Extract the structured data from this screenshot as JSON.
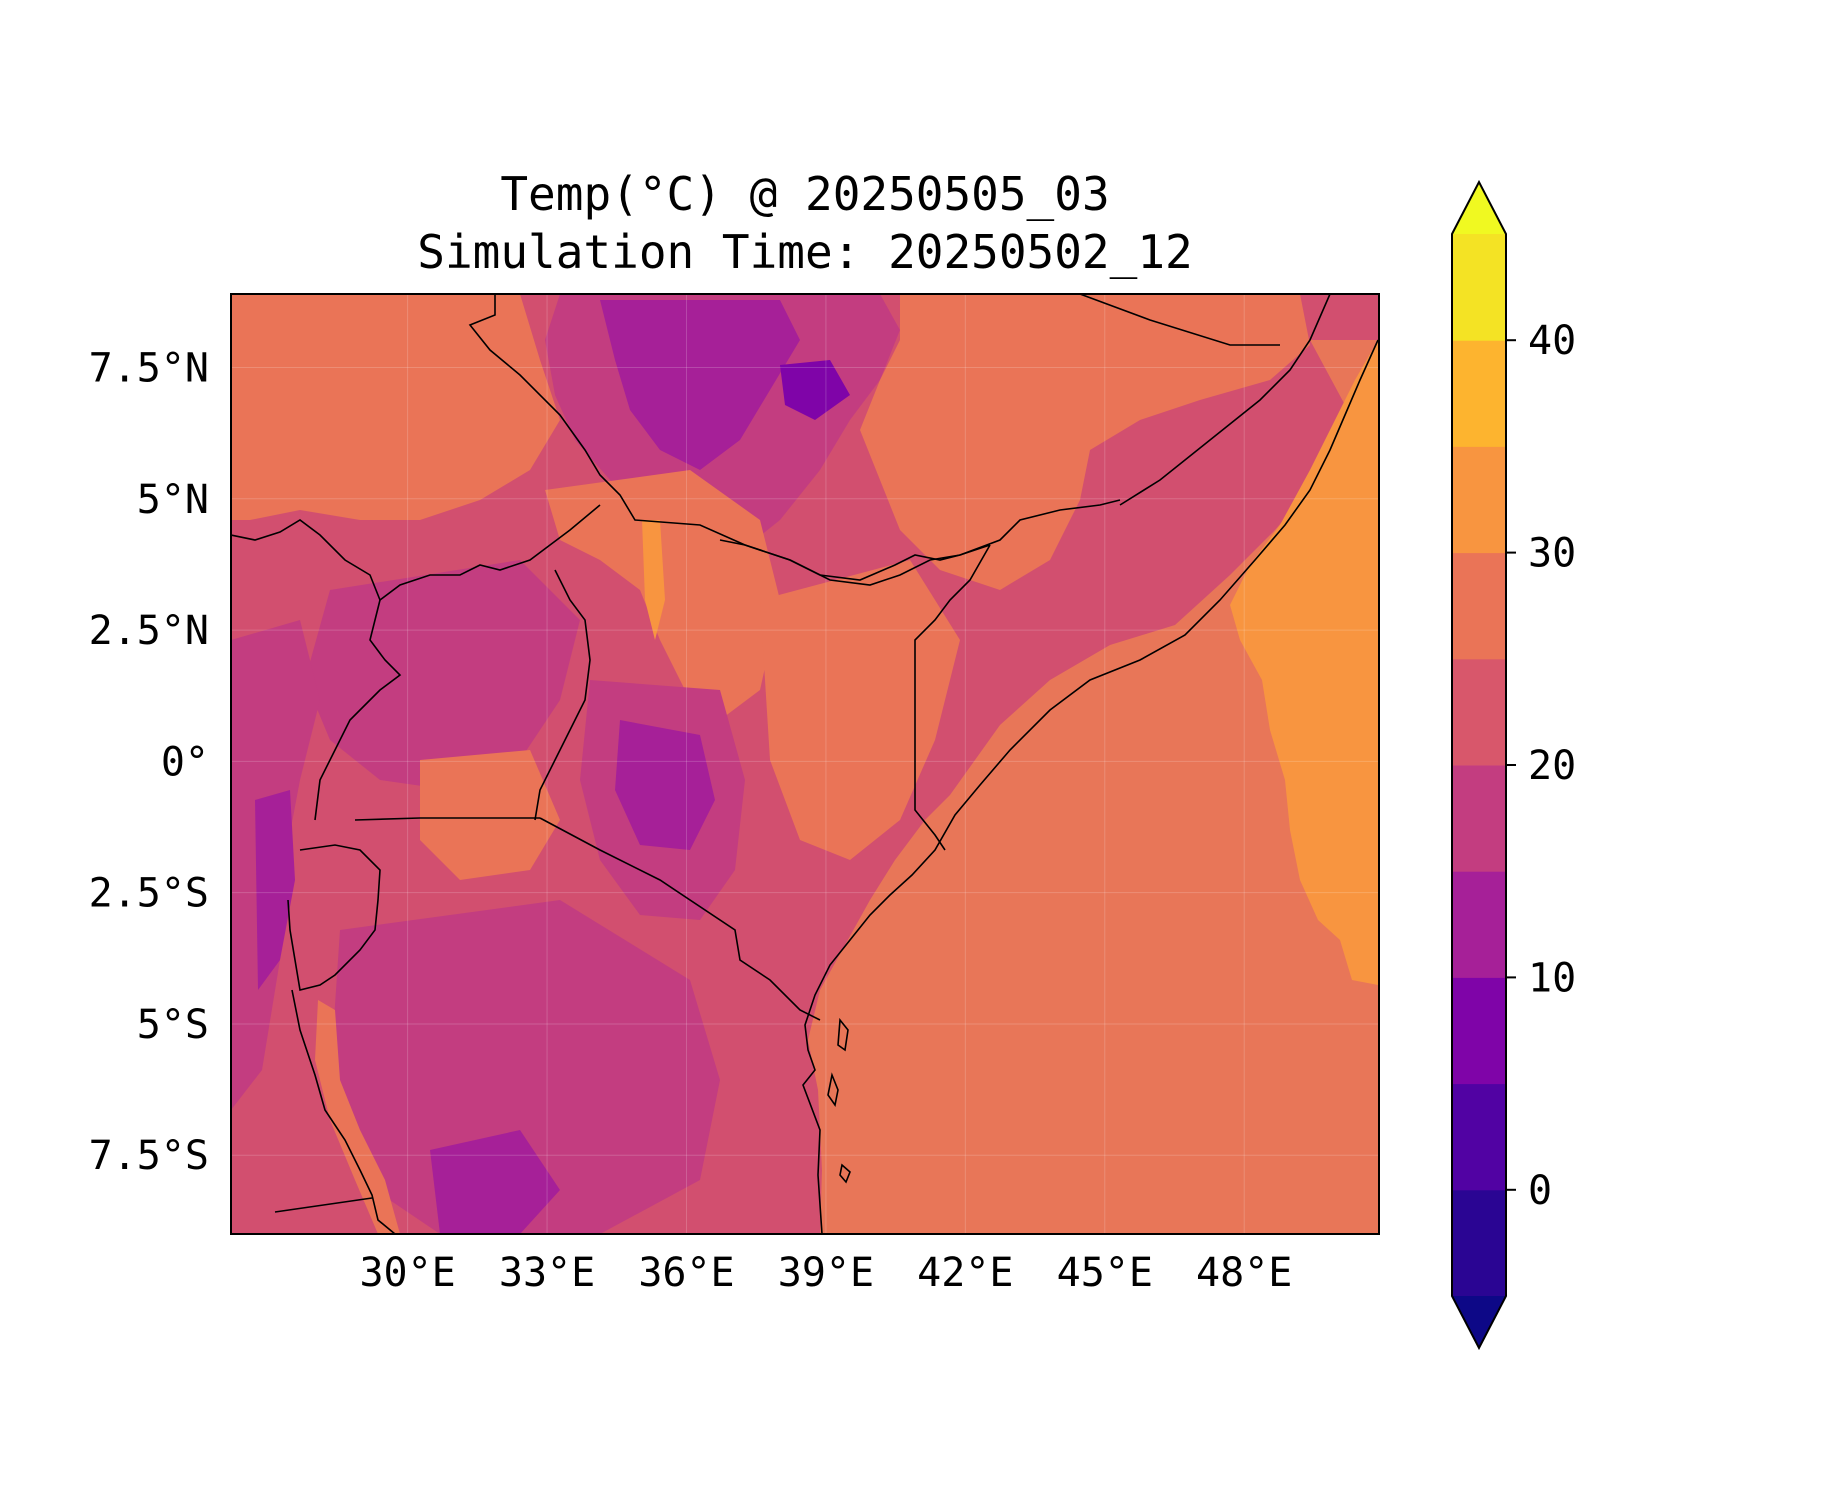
{
  "title": {
    "line1": "Temp(°C) @ 20250505_03",
    "line2": "Simulation Time: 20250502_12"
  },
  "map": {
    "lon_range": [
      26.2,
      50.9
    ],
    "lat_range": [
      -9.0,
      8.9
    ],
    "x_ticks": [
      {
        "value": 30,
        "label": "30°E"
      },
      {
        "value": 33,
        "label": "33°E"
      },
      {
        "value": 36,
        "label": "36°E"
      },
      {
        "value": 39,
        "label": "39°E"
      },
      {
        "value": 42,
        "label": "42°E"
      },
      {
        "value": 45,
        "label": "45°E"
      },
      {
        "value": 48,
        "label": "48°E"
      }
    ],
    "y_ticks": [
      {
        "value": 7.5,
        "label": "7.5°N"
      },
      {
        "value": 5,
        "label": "5°N"
      },
      {
        "value": 2.5,
        "label": "2.5°N"
      },
      {
        "value": 0,
        "label": "0°"
      },
      {
        "value": -2.5,
        "label": "2.5°S"
      },
      {
        "value": -5,
        "label": "5°S"
      },
      {
        "value": -7.5,
        "label": "7.5°S"
      }
    ],
    "gridlines": true,
    "land_color": "#d24f6f",
    "ocean_color": "#e87658"
  },
  "colorbar": {
    "extend": "both",
    "range": [
      -5,
      45
    ],
    "levels": [
      {
        "from": -5,
        "to": 0,
        "color": "#2a0593"
      },
      {
        "from": 0,
        "to": 5,
        "color": "#5102a3"
      },
      {
        "from": 5,
        "to": 10,
        "color": "#7f04a8"
      },
      {
        "from": 10,
        "to": 15,
        "color": "#a62098"
      },
      {
        "from": 15,
        "to": 20,
        "color": "#c33d80"
      },
      {
        "from": 20,
        "to": 25,
        "color": "#d8576b"
      },
      {
        "from": 25,
        "to": 30,
        "color": "#ea7457"
      },
      {
        "from": 30,
        "to": 35,
        "color": "#f89540"
      },
      {
        "from": 35,
        "to": 40,
        "color": "#fdb42f"
      },
      {
        "from": 40,
        "to": 45,
        "color": "#f4e324"
      }
    ],
    "under_color": "#0d0887",
    "over_color": "#f0f921",
    "ticks": [
      {
        "value": 0,
        "label": "0"
      },
      {
        "value": 10,
        "label": "10"
      },
      {
        "value": 20,
        "label": "20"
      },
      {
        "value": 30,
        "label": "30"
      },
      {
        "value": 40,
        "label": "40"
      }
    ]
  }
}
